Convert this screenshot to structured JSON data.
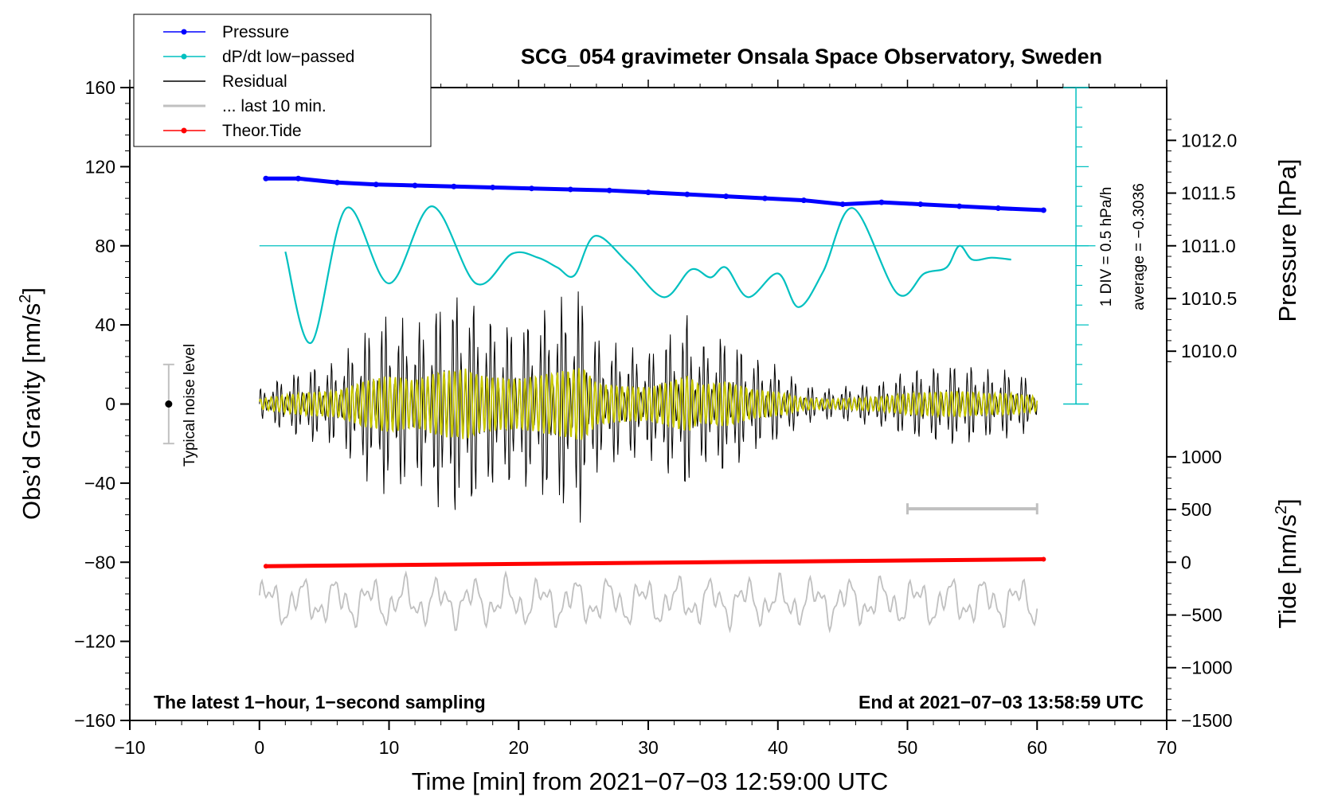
{
  "chart_data": {
    "type": "line",
    "title": "SCG_054 gravimeter Onsala Space Observatory, Sweden",
    "xlabel": "Time [min] from 2021−07−03 12:59:00 UTC",
    "ylabel": "Obs’d Gravity [nm/s",
    "ylabel_sup": "2",
    "ylabel_close": "]",
    "xlim": [
      -10,
      70
    ],
    "ylim": [
      -160,
      160
    ],
    "x_ticks": [
      -10,
      0,
      10,
      20,
      30,
      40,
      50,
      60,
      70
    ],
    "x_tick_labels": [
      "−10",
      "0",
      "10",
      "20",
      "30",
      "40",
      "50",
      "60",
      "70"
    ],
    "y_ticks": [
      -160,
      -120,
      -80,
      -40,
      0,
      40,
      80,
      120,
      160
    ],
    "y_tick_labels": [
      "−160",
      "−120",
      "−80",
      "−40",
      "0",
      "40",
      "80",
      "120",
      "160"
    ],
    "pressure_axis": {
      "label": "Pressure [hPa]",
      "ticks": [
        1010.0,
        1010.5,
        1011.0,
        1011.5,
        1012.0
      ],
      "tick_labels": [
        "1010.0",
        "1010.5",
        "1011.0",
        "1011.5",
        "1012.0"
      ],
      "gravity_at_1011": 80,
      "gravity_per_hpa": 53.3
    },
    "tide_axis": {
      "label": "Tide [nm/s",
      "label_sup": "2",
      "label_close": "]",
      "ticks": [
        -1500,
        -1000,
        -500,
        0,
        500,
        1000
      ],
      "tick_labels": [
        "−1500",
        "−1000",
        "−500",
        "0",
        "500",
        "1000"
      ],
      "gravity_at_zero": -80,
      "gravity_per_unit": 0.0533
    },
    "dpdt_scale": {
      "label": "1 DIV = 0.5 hPa/h",
      "average_label": "average = −0.3036",
      "x": 63,
      "y_range": [
        0,
        160
      ],
      "baseline": 80
    },
    "noise_level": {
      "label": "Typical noise level",
      "x": -7,
      "center": 0,
      "half_range": 20
    },
    "ten_min_bar": {
      "x_start": 50,
      "x_end": 60,
      "y": -53
    },
    "legend": [
      {
        "label": "Pressure",
        "color": "#0000ff",
        "marker": true
      },
      {
        "label": "dP/dt low−passed",
        "color": "#00c0c0",
        "marker": true
      },
      {
        "label": "Residual",
        "color": "#000000",
        "marker": false
      },
      {
        "label": "... last 10 min.",
        "color": "#c0c0c0",
        "marker": false
      },
      {
        "label": "Theor.Tide",
        "color": "#ff0000",
        "marker": true
      }
    ],
    "series": [
      {
        "name": "Pressure",
        "color": "#0000ff",
        "x": [
          0.5,
          3,
          6,
          9,
          12,
          15,
          18,
          21,
          24,
          27,
          30,
          33,
          36,
          39,
          42,
          45,
          48,
          51,
          54,
          57,
          60.5
        ],
        "y": [
          114,
          114,
          112,
          111,
          110.5,
          110,
          109.5,
          109,
          108.5,
          108,
          107,
          106,
          105,
          104,
          103,
          101,
          102,
          101,
          100,
          99,
          98
        ]
      },
      {
        "name": "dP/dt low-passed",
        "color": "#00c0c0",
        "x": [
          2,
          4,
          6.7,
          10,
          13.3,
          16.7,
          19.5,
          21.5,
          23,
          24.3,
          25.9,
          28.5,
          31.2,
          33.3,
          34.8,
          36,
          37.7,
          40,
          41.6,
          43.5,
          45.8,
          49.2,
          51.3,
          53,
          54,
          55,
          56.5,
          58
        ],
        "y": [
          77,
          31,
          99,
          61,
          100,
          61,
          76,
          74,
          69,
          65,
          85,
          71,
          54,
          68,
          64,
          69,
          54,
          66,
          49,
          67,
          99,
          56,
          66,
          69,
          80,
          73,
          74,
          73
        ]
      },
      {
        "name": "Theor.Tide",
        "color": "#ff0000",
        "x": [
          0.5,
          60.5
        ],
        "y": [
          -82,
          -78.5
        ]
      }
    ],
    "residual_envelope": {
      "name": "Residual",
      "color": "#000000",
      "x": [
        0,
        2,
        4,
        6,
        8,
        10,
        12,
        14,
        16,
        17,
        18,
        20,
        22,
        24,
        25,
        26,
        28,
        30,
        32,
        33,
        34,
        36,
        38,
        40,
        42,
        44,
        46,
        48,
        50,
        52,
        54,
        56,
        58,
        60
      ],
      "amplitude": [
        8,
        15,
        20,
        22,
        38,
        48,
        40,
        55,
        60,
        48,
        45,
        42,
        50,
        58,
        62,
        35,
        30,
        28,
        40,
        48,
        32,
        38,
        25,
        20,
        10,
        8,
        10,
        12,
        18,
        20,
        22,
        18,
        18,
        12
      ]
    },
    "filtered_color": "#c8c800",
    "last10_color": "#c0c0c0",
    "notes": {
      "left": "The latest 1−hour, 1−second sampling",
      "right": "End at 2021−07−03 13:58:59 UTC"
    }
  }
}
